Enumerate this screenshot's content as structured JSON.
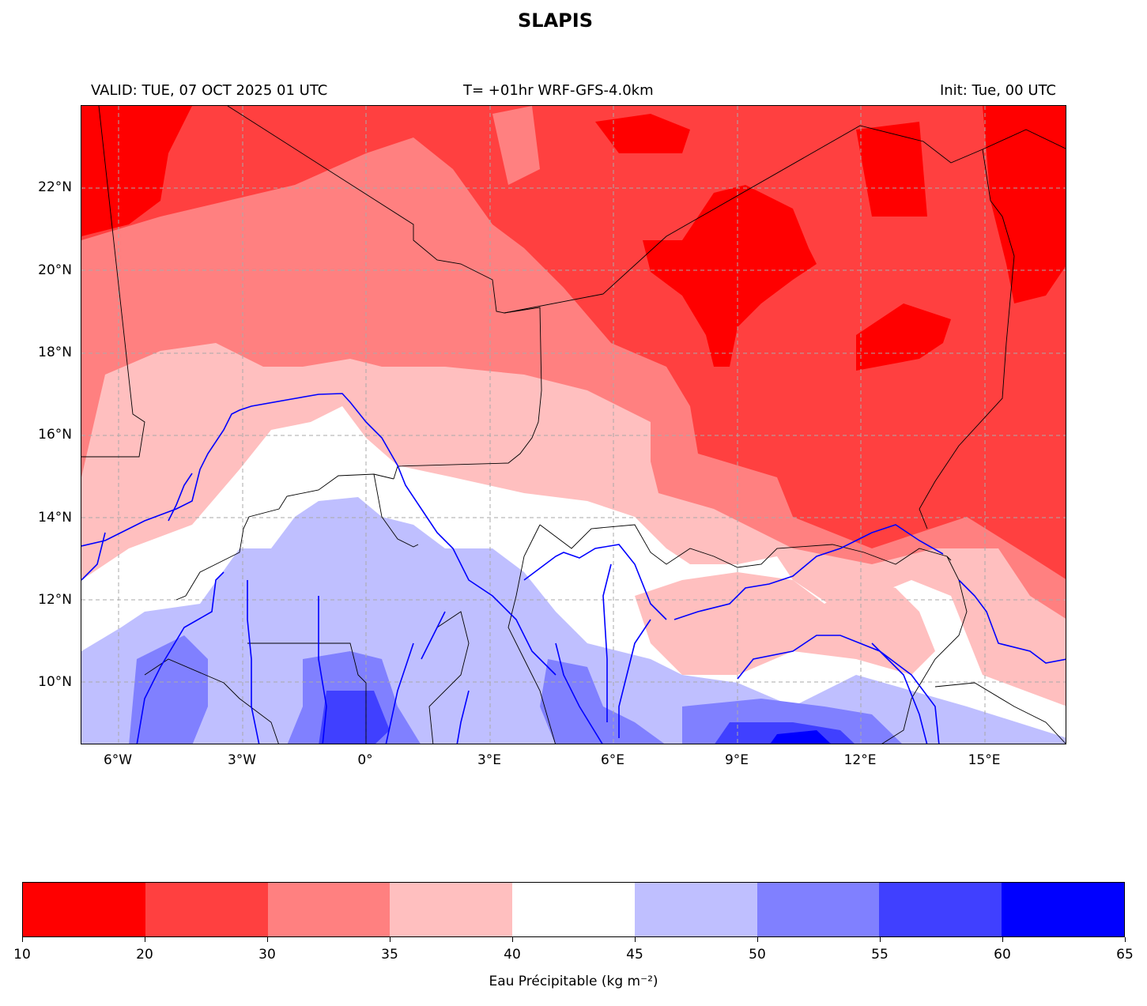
{
  "title": "SLAPIS",
  "subtitle": {
    "valid": "VALID: TUE, 07 OCT 2025 01 UTC",
    "model": "T= +01hr WRF-GFS-4.0km",
    "init": "Init: Tue, 00 UTC"
  },
  "map": {
    "lat_ticks": [
      "22°N",
      "20°N",
      "18°N",
      "16°N",
      "14°N",
      "12°N",
      "10°N"
    ],
    "lon_ticks": [
      "6°W",
      "3°W",
      "0°",
      "3°E",
      "6°E",
      "9°E",
      "12°E",
      "15°E"
    ],
    "extent": {
      "lon": [
        -6.9,
        17.0
      ],
      "lat": [
        8.5,
        24.0
      ]
    }
  },
  "colorbar": {
    "levels": [
      "10",
      "20",
      "30",
      "35",
      "40",
      "45",
      "50",
      "55",
      "60",
      "65"
    ],
    "colors": [
      "#ff0000",
      "#ff4040",
      "#ff8080",
      "#ffbfbf",
      "#ffffff",
      "#bfbfff",
      "#8080ff",
      "#4040ff",
      "#0000ff"
    ],
    "label": "Eau Précipitable (kg m⁻²)"
  }
}
